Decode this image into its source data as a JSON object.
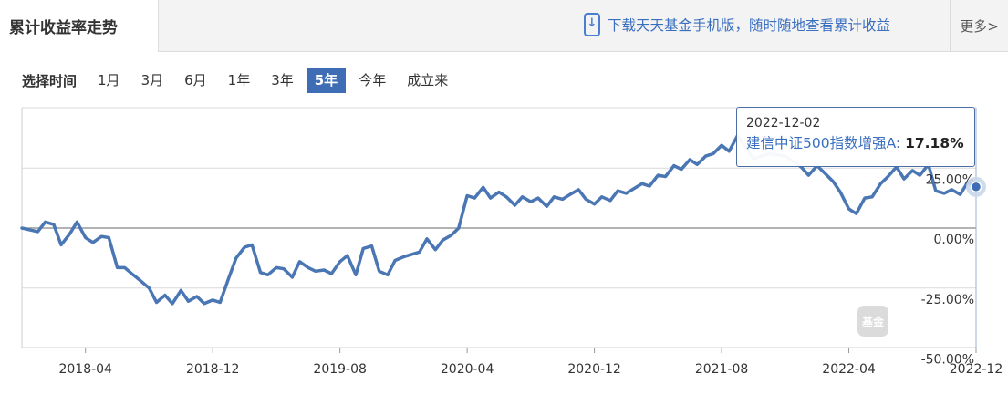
{
  "header": {
    "tab_title": "累计收益率走势",
    "promo_text": "下载天天基金手机版，随时随地查看累计收益",
    "more_label": "更多>"
  },
  "range": {
    "label": "选择时间",
    "options": [
      "1月",
      "3月",
      "6月",
      "1年",
      "3年",
      "5年",
      "今年",
      "成立来"
    ],
    "active": "5年"
  },
  "tooltip": {
    "date": "2022-12-02",
    "series": "建信中证500指数增强A:",
    "value": "17.18%"
  },
  "watermark": {
    "logo_text": "基金",
    "brand": "天天基金"
  },
  "colors": {
    "line": "#4a76b4",
    "active_range": "#3e6db5",
    "tooltip_border": "#4a6fa5"
  },
  "chart_data": {
    "type": "line",
    "title": "",
    "xlabel": "",
    "ylabel": "",
    "x_ticks": [
      "2018-04",
      "2018-12",
      "2019-08",
      "2020-04",
      "2020-12",
      "2021-08",
      "2022-04",
      "2022-12"
    ],
    "y_ticks": [
      "-50.00%",
      "-25.00%",
      "0.00%",
      "25.00%"
    ],
    "ylim": [
      -50,
      50
    ],
    "xlim": [
      "2017-12",
      "2022-12"
    ],
    "grid": true,
    "series": [
      {
        "name": "建信中证500指数增强A",
        "points": [
          [
            "2017-12",
            0.0
          ],
          [
            "2018-01",
            -1.5
          ],
          [
            "2018-01-15",
            2.5
          ],
          [
            "2018-02",
            1.5
          ],
          [
            "2018-02-15",
            -7.0
          ],
          [
            "2018-03",
            -2.5
          ],
          [
            "2018-03-15",
            2.5
          ],
          [
            "2018-04",
            -4.0
          ],
          [
            "2018-04-15",
            -6.0
          ],
          [
            "2018-05",
            -3.5
          ],
          [
            "2018-05-15",
            -4.0
          ],
          [
            "2018-06",
            -16.5
          ],
          [
            "2018-06-15",
            -16.5
          ],
          [
            "2018-07",
            -19.5
          ],
          [
            "2018-07-15",
            -22.0
          ],
          [
            "2018-08",
            -25.0
          ],
          [
            "2018-08-15",
            -31.0
          ],
          [
            "2018-09",
            -28.0
          ],
          [
            "2018-09-15",
            -31.5
          ],
          [
            "2018-10",
            -26.0
          ],
          [
            "2018-10-15",
            -30.5
          ],
          [
            "2018-11",
            -28.5
          ],
          [
            "2018-11-15",
            -31.5
          ],
          [
            "2018-12",
            -30.0
          ],
          [
            "2018-12-15",
            -31.0
          ],
          [
            "2019-01",
            -21.0
          ],
          [
            "2019-01-15",
            -12.5
          ],
          [
            "2019-02",
            -8.0
          ],
          [
            "2019-02-15",
            -7.0
          ],
          [
            "2019-03",
            -18.5
          ],
          [
            "2019-03-15",
            -19.5
          ],
          [
            "2019-04",
            -16.5
          ],
          [
            "2019-04-15",
            -17.0
          ],
          [
            "2019-05",
            -20.5
          ],
          [
            "2019-05-15",
            -14.0
          ],
          [
            "2019-06",
            -16.5
          ],
          [
            "2019-06-15",
            -18.0
          ],
          [
            "2019-07",
            -17.5
          ],
          [
            "2019-07-15",
            -19.0
          ],
          [
            "2019-08",
            -14.0
          ],
          [
            "2019-08-15",
            -11.5
          ],
          [
            "2019-09",
            -19.5
          ],
          [
            "2019-09-15",
            -8.5
          ],
          [
            "2019-10",
            -7.5
          ],
          [
            "2019-10-15",
            -18.0
          ],
          [
            "2019-11",
            -19.5
          ],
          [
            "2019-11-15",
            -13.5
          ],
          [
            "2019-12",
            -12.0
          ],
          [
            "2020-01",
            -10.0
          ],
          [
            "2020-01-15",
            -4.5
          ],
          [
            "2020-02",
            -9.0
          ],
          [
            "2020-02-15",
            -5.0
          ],
          [
            "2020-03",
            -3.0
          ],
          [
            "2020-03-15",
            0.0
          ],
          [
            "2020-04",
            13.5
          ],
          [
            "2020-04-15",
            12.5
          ],
          [
            "2020-05",
            17.0
          ],
          [
            "2020-05-15",
            12.5
          ],
          [
            "2020-06",
            15.0
          ],
          [
            "2020-06-15",
            13.0
          ],
          [
            "2020-07",
            9.5
          ],
          [
            "2020-07-15",
            13.0
          ],
          [
            "2020-08",
            11.0
          ],
          [
            "2020-08-15",
            12.5
          ],
          [
            "2020-09",
            9.0
          ],
          [
            "2020-09-15",
            13.0
          ],
          [
            "2020-10",
            12.0
          ],
          [
            "2020-10-15",
            14.0
          ],
          [
            "2020-11",
            16.0
          ],
          [
            "2020-11-15",
            12.0
          ],
          [
            "2020-12",
            10.0
          ],
          [
            "2020-12-15",
            13.0
          ],
          [
            "2021-01",
            11.5
          ],
          [
            "2021-01-15",
            15.5
          ],
          [
            "2021-02",
            14.5
          ],
          [
            "2021-03",
            18.5
          ],
          [
            "2021-03-15",
            17.5
          ],
          [
            "2021-04",
            22.0
          ],
          [
            "2021-04-15",
            21.5
          ],
          [
            "2021-05",
            26.0
          ],
          [
            "2021-05-15",
            24.5
          ],
          [
            "2021-06",
            28.5
          ],
          [
            "2021-06-15",
            26.5
          ],
          [
            "2021-07",
            30.0
          ],
          [
            "2021-07-15",
            31.0
          ],
          [
            "2021-08",
            34.5
          ],
          [
            "2021-08-15",
            32.0
          ],
          [
            "2021-09",
            38.5
          ],
          [
            "2021-10",
            29.0
          ],
          [
            "2021-11",
            31.0
          ],
          [
            "2021-12",
            30.0
          ],
          [
            "2022-01",
            25.5
          ],
          [
            "2022-01-15",
            22.0
          ],
          [
            "2022-02",
            26.0
          ],
          [
            "2022-02-15",
            23.0
          ],
          [
            "2022-03",
            19.5
          ],
          [
            "2022-03-15",
            15.0
          ],
          [
            "2022-04",
            8.0
          ],
          [
            "2022-04-15",
            6.0
          ],
          [
            "2022-05",
            12.5
          ],
          [
            "2022-05-15",
            13.0
          ],
          [
            "2022-06",
            18.5
          ],
          [
            "2022-06-15",
            21.5
          ],
          [
            "2022-07",
            25.5
          ],
          [
            "2022-07-15",
            20.5
          ],
          [
            "2022-08",
            24.0
          ],
          [
            "2022-08-15",
            22.0
          ],
          [
            "2022-09",
            26.5
          ],
          [
            "2022-09-15",
            15.5
          ],
          [
            "2022-10",
            14.5
          ],
          [
            "2022-10-15",
            16.0
          ],
          [
            "2022-11",
            14.0
          ],
          [
            "2022-11-15",
            19.0
          ],
          [
            "2022-12",
            17.18
          ]
        ]
      }
    ],
    "highlight": {
      "date": "2022-12-02",
      "value": 17.18
    }
  }
}
